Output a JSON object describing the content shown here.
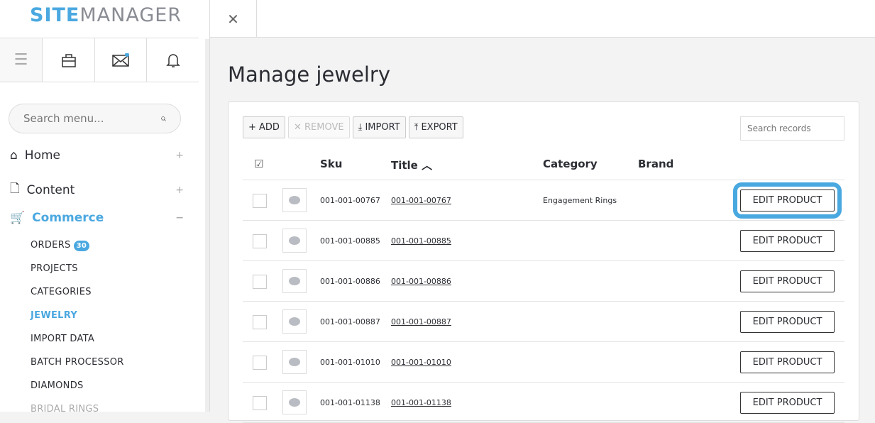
{
  "app": {
    "logo_bold": "SITE",
    "logo_light": "MANAGER"
  },
  "sidebar": {
    "search_placeholder": "Search menu...",
    "nav": [
      {
        "label": "Home",
        "toggle": "+"
      },
      {
        "label": "Content",
        "toggle": "+"
      },
      {
        "label": "Commerce",
        "toggle": "−"
      }
    ],
    "sub": [
      {
        "label": "ORDERS",
        "badge": "30"
      },
      {
        "label": "PROJECTS"
      },
      {
        "label": "CATEGORIES"
      },
      {
        "label": "JEWELRY"
      },
      {
        "label": "IMPORT DATA"
      },
      {
        "label": "BATCH PROCESSOR"
      },
      {
        "label": "DIAMONDS"
      },
      {
        "label": "BRIDAL RINGS"
      }
    ]
  },
  "topbar": {
    "close": "✕"
  },
  "main": {
    "title": "Manage jewelry",
    "toolbar": {
      "add": "+ ADD",
      "remove": "✕ REMOVE",
      "import": "⤓ IMPORT",
      "export": "⤒ EXPORT",
      "search_placeholder": "Search records"
    },
    "columns": {
      "sku": "Sku",
      "title": "Title ︿",
      "category": "Category",
      "brand": "Brand"
    },
    "edit_label": "EDIT PRODUCT",
    "rows": [
      {
        "sku": "001-001-00767",
        "title": "001-001-00767",
        "category": "Engagement Rings"
      },
      {
        "sku": "001-001-00885",
        "title": "001-001-00885",
        "category": ""
      },
      {
        "sku": "001-001-00886",
        "title": "001-001-00886",
        "category": ""
      },
      {
        "sku": "001-001-00887",
        "title": "001-001-00887",
        "category": ""
      },
      {
        "sku": "001-001-01010",
        "title": "001-001-01010",
        "category": ""
      },
      {
        "sku": "001-001-01138",
        "title": "001-001-01138",
        "category": ""
      }
    ]
  },
  "colors": {
    "accent": "#4aa8e0"
  }
}
